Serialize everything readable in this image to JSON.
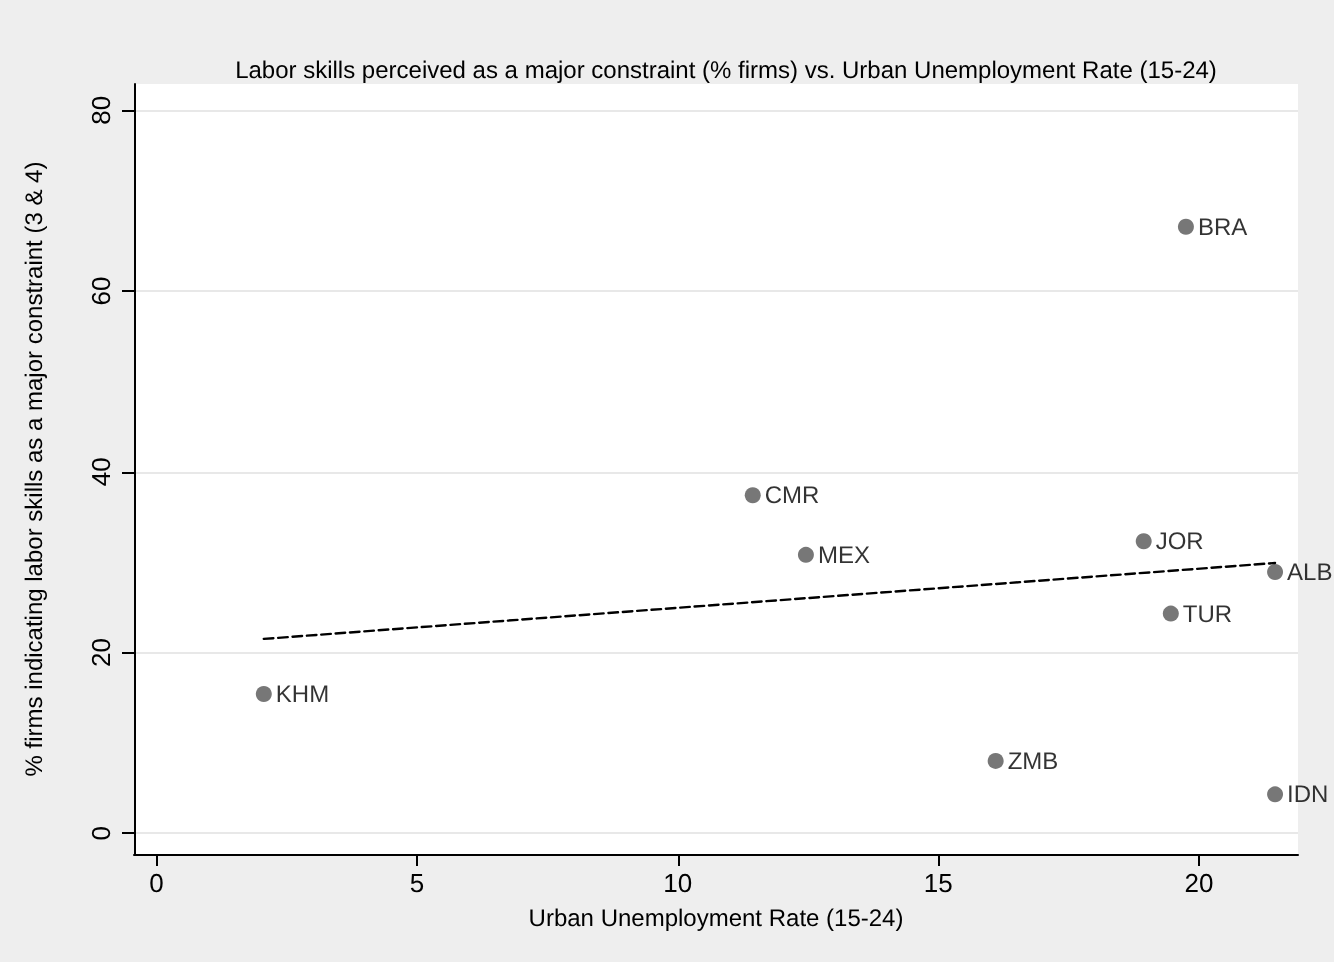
{
  "chart_data": {
    "type": "scatter",
    "title": "Labor skills perceived as a major constraint (% firms) vs. Urban Unemployment Rate (15-24)",
    "xlabel": "Urban Unemployment Rate (15-24)",
    "ylabel": "% firms indicating labor skills as a major constraint (3 & 4)",
    "series": [
      {
        "type": "scatter",
        "color": "#555555",
        "marker": "circle",
        "x": [
          2.06,
          11.44,
          12.46,
          16.1,
          19.75,
          18.94,
          21.46,
          19.46,
          21.46
        ],
        "values": [
          15.4,
          37.4,
          30.8,
          8.0,
          67.1,
          32.3,
          28.9,
          24.3,
          4.3
        ],
        "value_labels": [
          "KHM",
          "CMR",
          "MEX",
          "ZMB",
          "BRA",
          "JOR",
          "ALB",
          "TUR",
          "IDN"
        ]
      },
      {
        "type": "line",
        "color": "#000000",
        "line_style": "dashed",
        "marker": "none",
        "x": [
          2.06,
          21.46
        ],
        "values": [
          21.5,
          29.9
        ]
      }
    ],
    "xlim": [
      -0.43,
      21.9
    ],
    "xticks": [
      0,
      5,
      10,
      15,
      20
    ],
    "ylim": [
      -2.3,
      82.9
    ],
    "yticks": [
      0,
      20,
      40,
      60,
      80
    ],
    "grid": "y"
  }
}
